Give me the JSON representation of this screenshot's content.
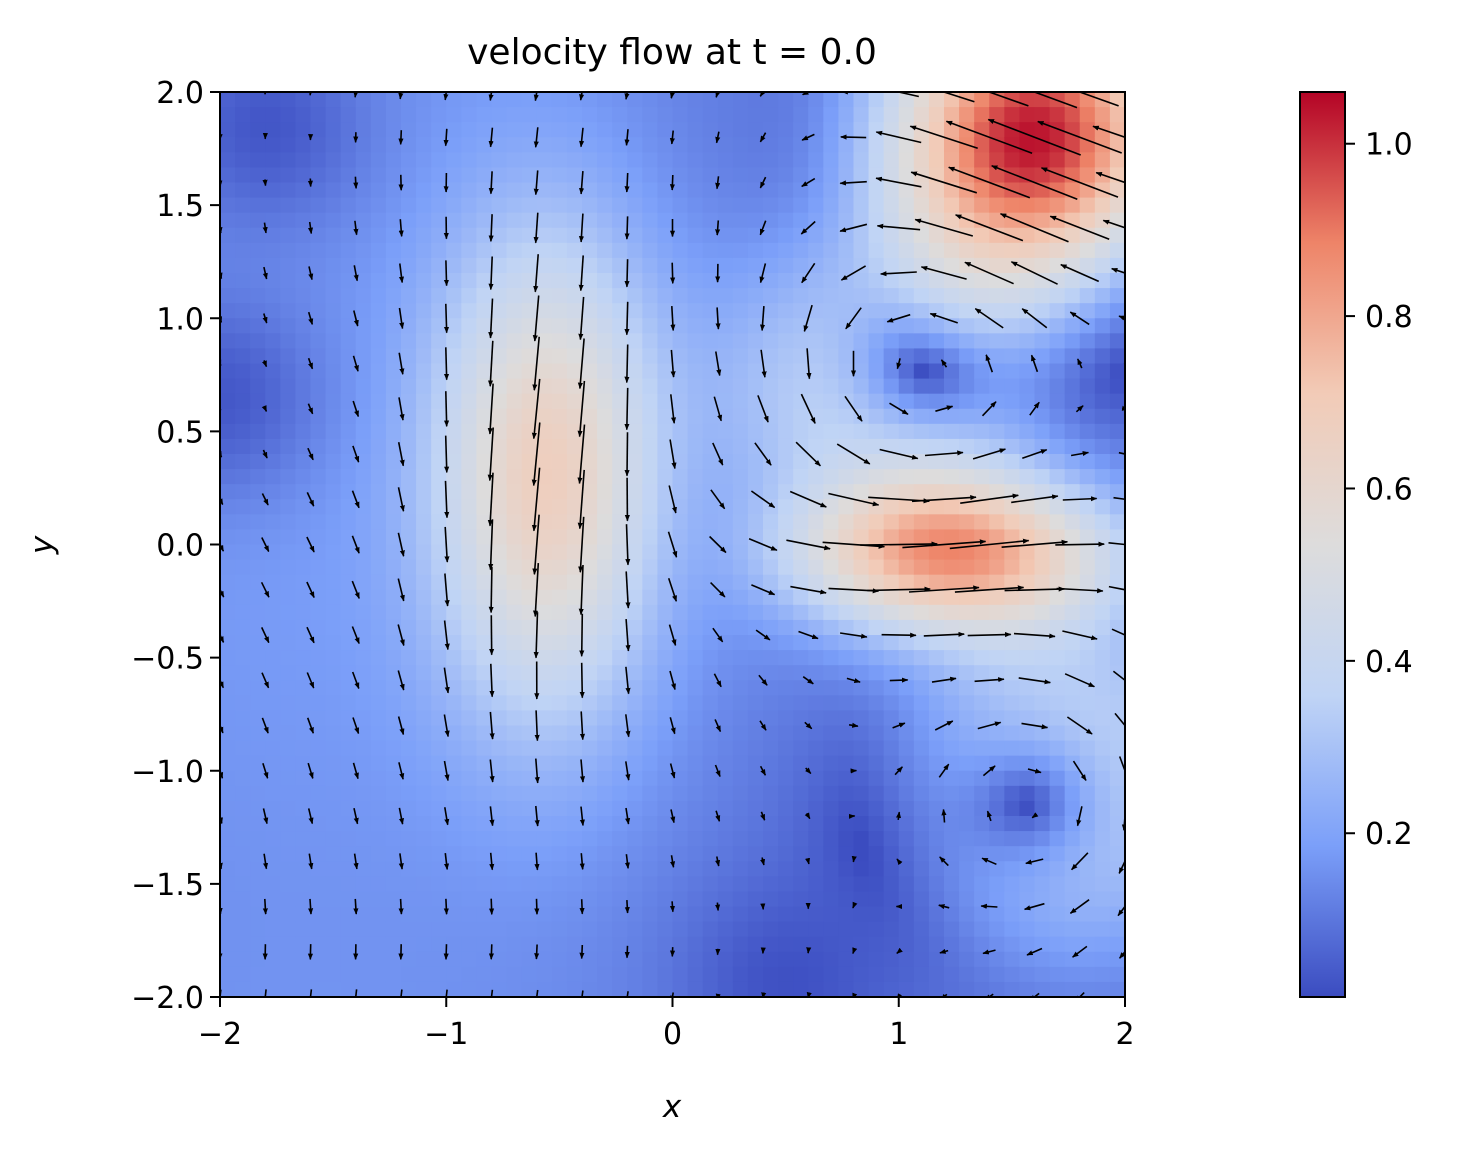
{
  "chart_data": {
    "type": "heatmap",
    "subtype": "quiver-over-speed-field",
    "title": "velocity flow at t = 0.0",
    "xlabel": "x",
    "ylabel": "y",
    "xlim": [
      -2,
      2
    ],
    "ylim": [
      -2,
      2
    ],
    "x_ticks": [
      -2,
      -1,
      0,
      1,
      2
    ],
    "x_tick_labels": [
      "−2",
      "−1",
      "0",
      "1",
      "2"
    ],
    "y_ticks": [
      -2.0,
      -1.5,
      -1.0,
      -0.5,
      0.0,
      0.5,
      1.0,
      1.5,
      2.0
    ],
    "y_tick_labels": [
      "−2.0",
      "−1.5",
      "−1.0",
      "−0.5",
      "0.0",
      "0.5",
      "1.0",
      "1.5",
      "2.0"
    ],
    "colormap": "coolwarm",
    "colormap_stops": [
      "#3b4cc0",
      "#7b9ff9",
      "#c0d4f5",
      "#dddcdc",
      "#f2cbb7",
      "#ee8468",
      "#b40426"
    ],
    "colorbar": {
      "range": [
        0.01,
        1.06
      ],
      "ticks": [
        0.2,
        0.4,
        0.6,
        0.8,
        1.0
      ],
      "tick_labels": [
        "0.2",
        "0.4",
        "0.6",
        "0.8",
        "1.0"
      ]
    },
    "grid": false,
    "quiver": {
      "grid_points": 21,
      "arrow_color": "#000000"
    },
    "flow_features": [
      {
        "kind": "strong-jet",
        "center": [
          1.6,
          1.8
        ],
        "speed": 1.05,
        "direction_deg": 155
      },
      {
        "kind": "southward-band",
        "center": [
          -0.55,
          0.3
        ],
        "speed": 0.55,
        "direction_deg": 255
      },
      {
        "kind": "eastward-jet",
        "center": [
          1.25,
          -0.05
        ],
        "speed": 0.68,
        "direction_deg": 10
      },
      {
        "kind": "vortex-center",
        "center": [
          1.05,
          0.75
        ],
        "speed": 0.02
      },
      {
        "kind": "vortex-center",
        "center": [
          1.65,
          -1.1
        ],
        "speed": 0.02
      },
      {
        "kind": "calm-region",
        "center": [
          -2.0,
          0.65
        ],
        "speed": 0.05
      },
      {
        "kind": "calm-region",
        "center": [
          0.5,
          -1.95
        ],
        "speed": 0.05
      },
      {
        "kind": "calm-region",
        "center": [
          -1.8,
          1.85
        ],
        "speed": 0.08
      }
    ]
  }
}
